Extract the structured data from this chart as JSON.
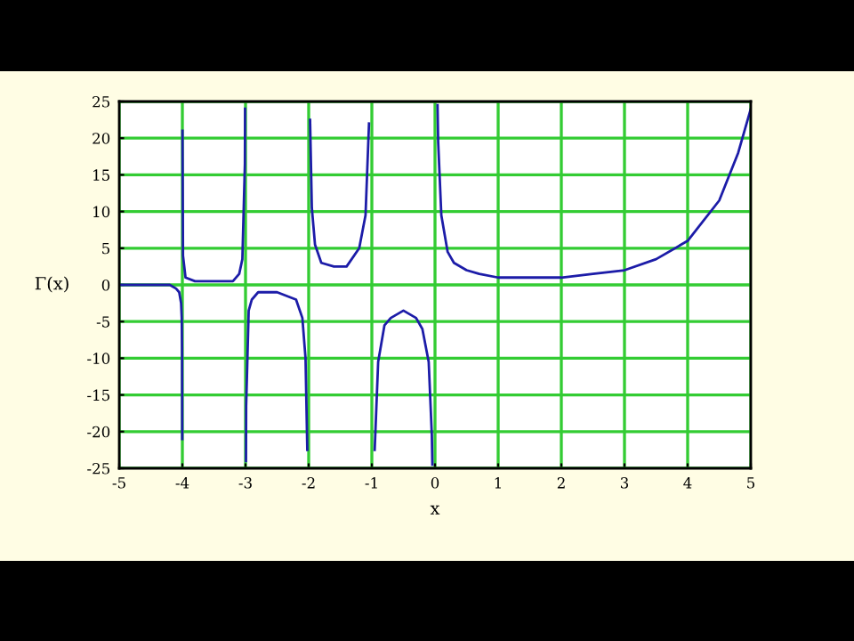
{
  "chart_data": {
    "type": "line",
    "xlabel": "x",
    "ylabel": "Γ(x)",
    "x": [
      -5,
      -4.8,
      -4.5,
      -4.2,
      -4.1,
      -4.05,
      -4.02,
      -4.01,
      -4.005,
      -4.002,
      -4.0,
      -3.998,
      -3.99,
      -3.95,
      -3.8,
      -3.5,
      -3.2,
      -3.1,
      -3.05,
      -3.01,
      -3.007,
      -3.0,
      -2.993,
      -2.99,
      -2.95,
      -2.9,
      -2.8,
      -2.5,
      -2.2,
      -2.1,
      -2.05,
      -2.022,
      -2.0,
      -1.978,
      -1.95,
      -1.9,
      -1.8,
      -1.6,
      -1.5,
      -1.4,
      -1.2,
      -1.1,
      -1.045,
      -1.0,
      -0.955,
      -0.9,
      -0.8,
      -0.7,
      -0.5,
      -0.3,
      -0.2,
      -0.1,
      -0.05,
      -0.042,
      0,
      0.04,
      0.05,
      0.1,
      0.2,
      0.3,
      0.5,
      0.7,
      1,
      1.46,
      2,
      2.5,
      3,
      3.5,
      4,
      4.5,
      4.8,
      5
    ],
    "series": [
      {
        "color": "#1c1ca8",
        "values": [
          0,
          0,
          0,
          0,
          -0.5,
          -1,
          -2.5,
          -4.5,
          -8.5,
          -21,
          null,
          21,
          4,
          1,
          0.5,
          0.5,
          0.5,
          1.5,
          3.5,
          16.5,
          24,
          null,
          -24,
          -16.5,
          -3.5,
          -2,
          -1,
          -1,
          -2,
          -4.5,
          -10,
          -22.5,
          null,
          22.5,
          10.5,
          5.5,
          3,
          2.5,
          2.5,
          2.5,
          5,
          9.5,
          22,
          null,
          -22.5,
          -10.5,
          -5.5,
          -4.5,
          -3.5,
          -4.5,
          -6,
          -10.5,
          -20.5,
          -24.5,
          null,
          24.5,
          19.5,
          9.5,
          4.5,
          3,
          2,
          1.5,
          1,
          1,
          1,
          1.5,
          2,
          3.5,
          6,
          11.5,
          18,
          24
        ]
      }
    ],
    "xlim": [
      -5,
      5
    ],
    "xticks": [
      -5,
      -4,
      -3,
      -2,
      -1,
      0,
      1,
      2,
      3,
      4,
      5
    ],
    "ylim": [
      -25,
      25
    ],
    "yticks": [
      -25,
      -20,
      -15,
      -10,
      -5,
      0,
      5,
      10,
      15,
      20,
      25
    ],
    "grid": true,
    "line_style": "solid",
    "marker": "none",
    "legend": false
  }
}
